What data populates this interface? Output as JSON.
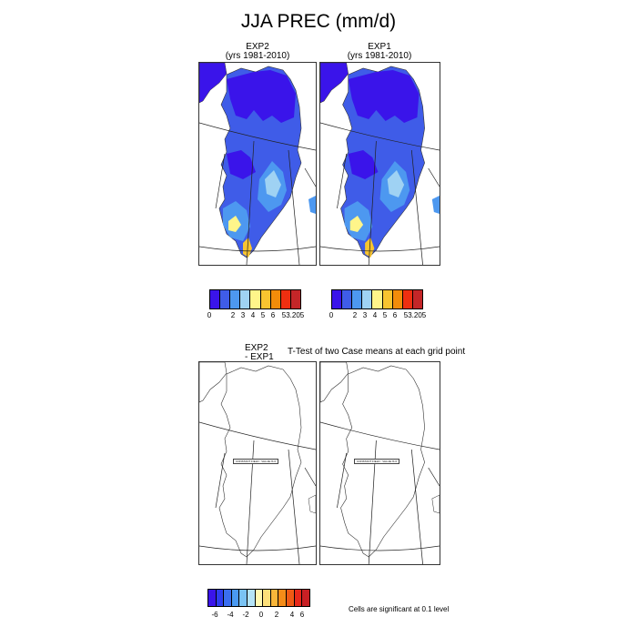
{
  "title": "JJA PREC (mm/d)",
  "top_panels": [
    {
      "name": "EXP2",
      "years": "(yrs 1981-2010)"
    },
    {
      "name": "EXP1",
      "years": "(yrs 1981-2010)"
    }
  ],
  "precip_colorbar": {
    "colors": [
      "#3a14ea",
      "#3f5ce8",
      "#4d98f0",
      "#9fd2f3",
      "#fff58a",
      "#f8c430",
      "#f28c0a",
      "#ef2f10",
      "#c42628"
    ],
    "ticks": [
      "0",
      "2",
      "3",
      "4",
      "5",
      "6",
      "53.205"
    ]
  },
  "diff_panel": {
    "line1": "EXP2",
    "line2": "- EXP1",
    "ttest_title": "T-Test of two Case means at each grid point"
  },
  "constant_field_label": "CONSTANT FIELD - VALUE IS 0",
  "diff_colorbar": {
    "colors": [
      "#3a14ea",
      "#2d3cf0",
      "#3a6ef0",
      "#4a9af2",
      "#7ac3f3",
      "#b4e3f6",
      "#fff8b0",
      "#fde07a",
      "#f9b63a",
      "#f48c18",
      "#ef5a14",
      "#e8281a",
      "#c81f24"
    ],
    "ticks": [
      "-6",
      "-4",
      "-2",
      "0",
      "2",
      "4",
      "6"
    ]
  },
  "significance_note": "Cells are significant at 0.1 level",
  "legend_colors": {
    "low": "#3a14ea",
    "mid_low": "#3f5ce8",
    "mid": "#4d98f0",
    "light": "#9fd2f3",
    "yellow": "#fff58a",
    "orange": "#f8c430"
  }
}
